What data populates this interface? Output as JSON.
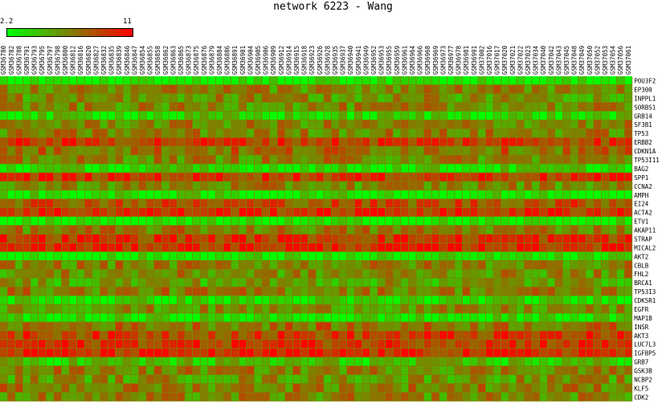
{
  "chart_data": {
    "type": "heatmap",
    "title": "network 6223 - Wang",
    "color_scale": {
      "min": 2.2,
      "max": 11,
      "low_color": "#00ff00",
      "high_color": "#ff0000"
    },
    "legend": {
      "min_label": "2.2",
      "max_label": "11"
    },
    "columns": [
      "GSM36780",
      "GSM36782",
      "GSM36788",
      "GSM36791",
      "GSM36793",
      "GSM36795",
      "GSM36797",
      "GSM36798",
      "GSM36800",
      "GSM36812",
      "GSM36816",
      "GSM36820",
      "GSM36827",
      "GSM36832",
      "GSM36835",
      "GSM36839",
      "GSM36846",
      "GSM36847",
      "GSM36854",
      "GSM36855",
      "GSM36858",
      "GSM36862",
      "GSM36863",
      "GSM36865",
      "GSM36873",
      "GSM36875",
      "GSM36876",
      "GSM36879",
      "GSM36884",
      "GSM36886",
      "GSM36891",
      "GSM36901",
      "GSM36904",
      "GSM36905",
      "GSM36906",
      "GSM36909",
      "GSM36912",
      "GSM36914",
      "GSM36915",
      "GSM36918",
      "GSM36923",
      "GSM36926",
      "GSM36928",
      "GSM36935",
      "GSM36937",
      "GSM36940",
      "GSM36941",
      "GSM36949",
      "GSM36952",
      "GSM36953",
      "GSM36955",
      "GSM36959",
      "GSM36961",
      "GSM36964",
      "GSM36966",
      "GSM36968",
      "GSM36969",
      "GSM36973",
      "GSM36977",
      "GSM36978",
      "GSM36981",
      "GSM36991",
      "GSM37002",
      "GSM37016",
      "GSM37017",
      "GSM37020",
      "GSM37021",
      "GSM37022",
      "GSM37023",
      "GSM37034",
      "GSM37040",
      "GSM37042",
      "GSM37043",
      "GSM37045",
      "GSM37048",
      "GSM37049",
      "GSM37050",
      "GSM37052",
      "GSM37053",
      "GSM37054",
      "GSM37056",
      "GSM37061"
    ],
    "rows": [
      "POU3F2",
      "EP300",
      "INPPL1",
      "SORBS1",
      "GRB14",
      "SF3B1",
      "TP53",
      "ERBB2",
      "CDKN1A",
      "TP53I11",
      "BAG2",
      "SPP1",
      "CCNA2",
      "AMPH",
      "EI24",
      "ACTA2",
      "ETV1",
      "AKAP11",
      "STRAP",
      "MICAL2",
      "AKT2",
      "CBLB",
      "FHL2",
      "BRCA1",
      "TP53I3",
      "CDK5R1",
      "EGFR",
      "MAP1B",
      "INSR",
      "AKT3",
      "LUC7L3",
      "IGFBP5",
      "GRB7",
      "GSK3B",
      "NCBP2",
      "KLF5",
      "CDK2"
    ],
    "row_means": [
      2.4,
      6.4,
      6.0,
      6.3,
      3.6,
      6.4,
      6.6,
      9.2,
      7.4,
      6.5,
      3.4,
      9.4,
      6.4,
      3.0,
      8.4,
      9.6,
      2.6,
      6.8,
      9.4,
      9.8,
      2.8,
      6.6,
      6.2,
      5.6,
      6.8,
      3.2,
      6.0,
      3.0,
      7.2,
      9.0,
      9.4,
      9.6,
      4.2,
      6.6,
      6.0,
      6.8,
      6.4
    ]
  }
}
